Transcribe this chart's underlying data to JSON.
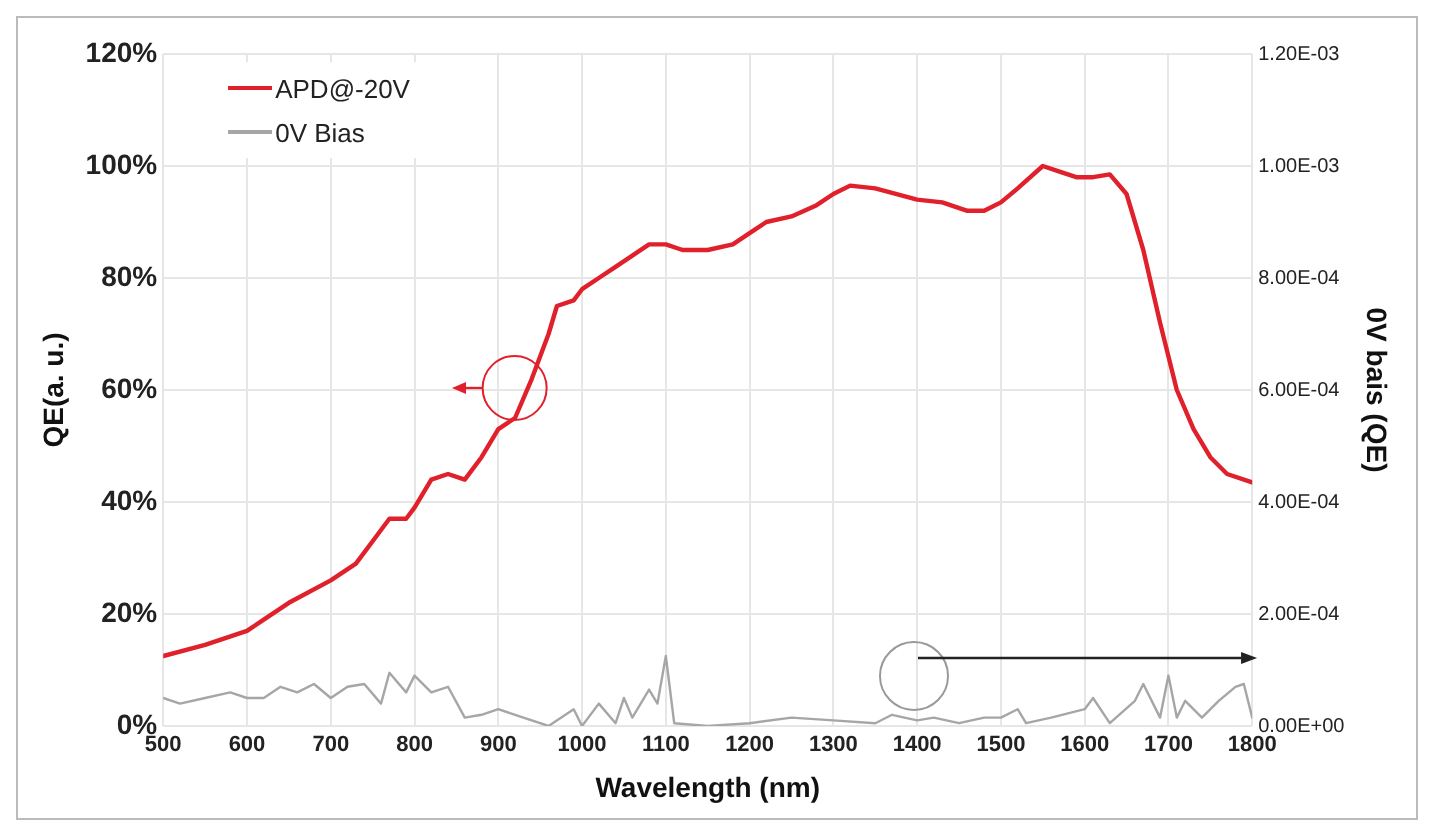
{
  "chart_data": {
    "type": "line",
    "xlabel": "Wavelength (nm)",
    "ylabel": "QE(a. u.)",
    "y2label": "0V bais (QE)",
    "xlim": [
      500,
      1800
    ],
    "xticks": [
      500,
      600,
      700,
      800,
      900,
      1000,
      1100,
      1200,
      1300,
      1400,
      1500,
      1600,
      1700,
      1800
    ],
    "ylim": [
      0,
      120
    ],
    "yticks": [
      {
        "value": 0,
        "label": "0%"
      },
      {
        "value": 20,
        "label": "20%"
      },
      {
        "value": 40,
        "label": "40%"
      },
      {
        "value": 60,
        "label": "60%"
      },
      {
        "value": 80,
        "label": "80%"
      },
      {
        "value": 100,
        "label": "100%"
      },
      {
        "value": 120,
        "label": "120%"
      }
    ],
    "y2lim": [
      0,
      0.0012
    ],
    "y2ticks": [
      {
        "value": 0,
        "label": "0.00E+00"
      },
      {
        "value": 0.0002,
        "label": "2.00E-04"
      },
      {
        "value": 0.0004,
        "label": "4.00E-04"
      },
      {
        "value": 0.0006,
        "label": "6.00E-04"
      },
      {
        "value": 0.0008,
        "label": "8.00E-04"
      },
      {
        "value": 0.001,
        "label": "1.00E-03"
      },
      {
        "value": 0.0012,
        "label": "1.20E-03"
      }
    ],
    "grid": true,
    "legend": "top left",
    "marker": "none",
    "line_style": "solid",
    "series": [
      {
        "name": "APD@-20V",
        "color": "#e0202a",
        "x": [
          500,
          550,
          600,
          620,
          650,
          700,
          730,
          750,
          770,
          790,
          800,
          820,
          840,
          860,
          880,
          900,
          920,
          940,
          960,
          970,
          990,
          1000,
          1020,
          1040,
          1060,
          1080,
          1100,
          1120,
          1150,
          1180,
          1200,
          1220,
          1250,
          1280,
          1300,
          1320,
          1350,
          1400,
          1430,
          1460,
          1480,
          1500,
          1520,
          1550,
          1570,
          1590,
          1610,
          1630,
          1650,
          1670,
          1690,
          1710,
          1730,
          1750,
          1770,
          1800
        ],
        "values": [
          12.5,
          14.5,
          17,
          19,
          22,
          26,
          29,
          33,
          37,
          37,
          39,
          44,
          45,
          44,
          48,
          53,
          55,
          62,
          70,
          75,
          76,
          78,
          80,
          82,
          84,
          86,
          86,
          85,
          85,
          86,
          88,
          90,
          91,
          93,
          95,
          96.5,
          96,
          94,
          93.5,
          92,
          92,
          93.5,
          96,
          100,
          99,
          98,
          98,
          98.5,
          95,
          85,
          72,
          60,
          53,
          48,
          45,
          43.5
        ]
      },
      {
        "name": "0V Bias",
        "color": "#a6a6a6",
        "axis": "y2",
        "x": [
          500,
          520,
          550,
          580,
          600,
          620,
          640,
          660,
          680,
          700,
          720,
          740,
          760,
          770,
          790,
          800,
          820,
          840,
          860,
          880,
          900,
          930,
          960,
          990,
          1000,
          1020,
          1040,
          1050,
          1060,
          1080,
          1090,
          1100,
          1110,
          1150,
          1200,
          1250,
          1300,
          1350,
          1370,
          1400,
          1420,
          1450,
          1480,
          1500,
          1520,
          1530,
          1560,
          1600,
          1610,
          1630,
          1660,
          1670,
          1690,
          1700,
          1710,
          1720,
          1740,
          1760,
          1780,
          1790,
          1800
        ],
        "values": [
          5e-05,
          4e-05,
          5e-05,
          6e-05,
          5e-05,
          5e-05,
          7e-05,
          6e-05,
          7.5e-05,
          5e-05,
          7e-05,
          7.5e-05,
          4e-05,
          9.5e-05,
          6e-05,
          9e-05,
          6e-05,
          7e-05,
          1.5e-05,
          2e-05,
          3e-05,
          1.5e-05,
          0,
          3e-05,
          0,
          4e-05,
          5e-06,
          5e-05,
          1.5e-05,
          6.5e-05,
          4e-05,
          0.000125,
          5e-06,
          0,
          5e-06,
          1.5e-05,
          1e-05,
          5e-06,
          2e-05,
          1e-05,
          1.5e-05,
          5e-06,
          1.5e-05,
          1.5e-05,
          3e-05,
          5e-06,
          1.5e-05,
          3e-05,
          5e-05,
          5e-06,
          4.5e-05,
          7.5e-05,
          1.5e-05,
          9e-05,
          1.5e-05,
          4.5e-05,
          1.5e-05,
          4.5e-05,
          7e-05,
          7.5e-05,
          1.5e-05
        ]
      }
    ]
  }
}
